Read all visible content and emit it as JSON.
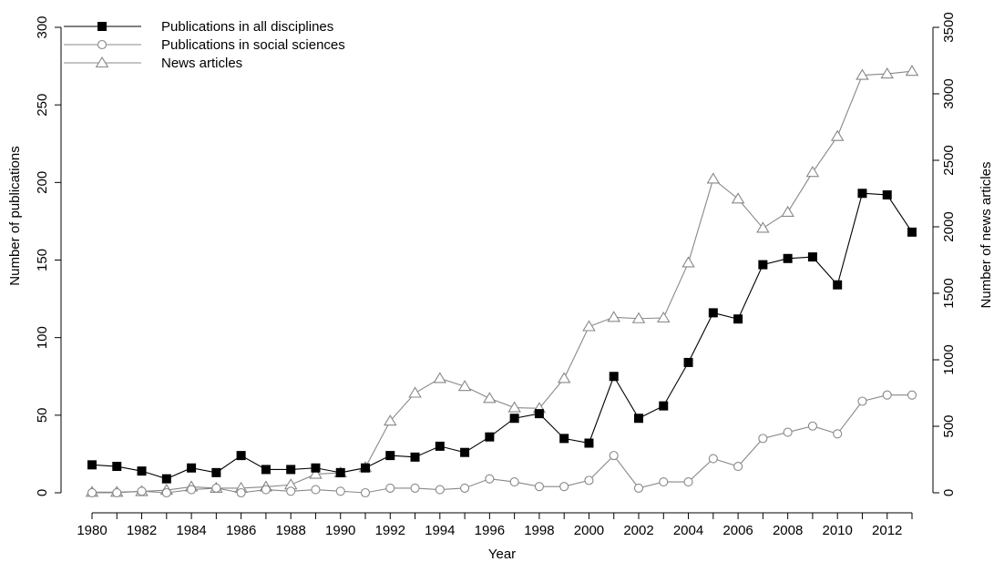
{
  "chart_data": {
    "type": "line",
    "xlabel": "Year",
    "ylabel_left": "Number of publications",
    "ylabel_right": "Number of news articles",
    "xlim": [
      1980,
      2013
    ],
    "x_ticks": [
      1980,
      1982,
      1984,
      1986,
      1988,
      1990,
      1992,
      1994,
      1996,
      1998,
      2000,
      2002,
      2004,
      2006,
      2008,
      2010,
      2012
    ],
    "ylim_left": [
      0,
      300
    ],
    "y_ticks_left": [
      0,
      50,
      100,
      150,
      200,
      250,
      300
    ],
    "ylim_right": [
      0,
      3500
    ],
    "y_ticks_right": [
      0,
      500,
      1000,
      1500,
      2000,
      2500,
      3000,
      3500
    ],
    "grid": false,
    "legend_position": "top-left",
    "x": [
      1980,
      1981,
      1982,
      1983,
      1984,
      1985,
      1986,
      1987,
      1988,
      1989,
      1990,
      1991,
      1992,
      1993,
      1994,
      1995,
      1996,
      1997,
      1998,
      1999,
      2000,
      2001,
      2002,
      2003,
      2004,
      2005,
      2006,
      2007,
      2008,
      2009,
      2010,
      2011,
      2012,
      2013
    ],
    "series": [
      {
        "name": "Publications in all disciplines",
        "axis": "left",
        "marker": "filled-square",
        "color": "#000000",
        "values": [
          18,
          17,
          14,
          9,
          16,
          13,
          24,
          15,
          15,
          16,
          13,
          16,
          24,
          23,
          30,
          26,
          36,
          48,
          51,
          35,
          32,
          75,
          48,
          56,
          84,
          116,
          112,
          147,
          151,
          152,
          134,
          193,
          192,
          168
        ]
      },
      {
        "name": "Publications in social sciences",
        "axis": "left",
        "marker": "open-circle",
        "color": "#888888",
        "values": [
          0,
          0,
          1,
          0,
          2,
          3,
          0,
          2,
          1,
          2,
          1,
          0,
          3,
          3,
          2,
          3,
          9,
          7,
          4,
          4,
          8,
          24,
          3,
          7,
          7,
          22,
          17,
          35,
          39,
          43,
          38,
          59,
          63,
          63
        ]
      },
      {
        "name": "News articles",
        "axis": "right",
        "marker": "open-triangle",
        "color": "#888888",
        "values": [
          5,
          5,
          10,
          20,
          45,
          35,
          35,
          45,
          60,
          140,
          150,
          190,
          540,
          750,
          860,
          800,
          710,
          640,
          635,
          860,
          1250,
          1320,
          1310,
          1315,
          1730,
          2360,
          2210,
          1990,
          2110,
          2410,
          2680,
          3140,
          3150,
          3170
        ]
      }
    ]
  }
}
